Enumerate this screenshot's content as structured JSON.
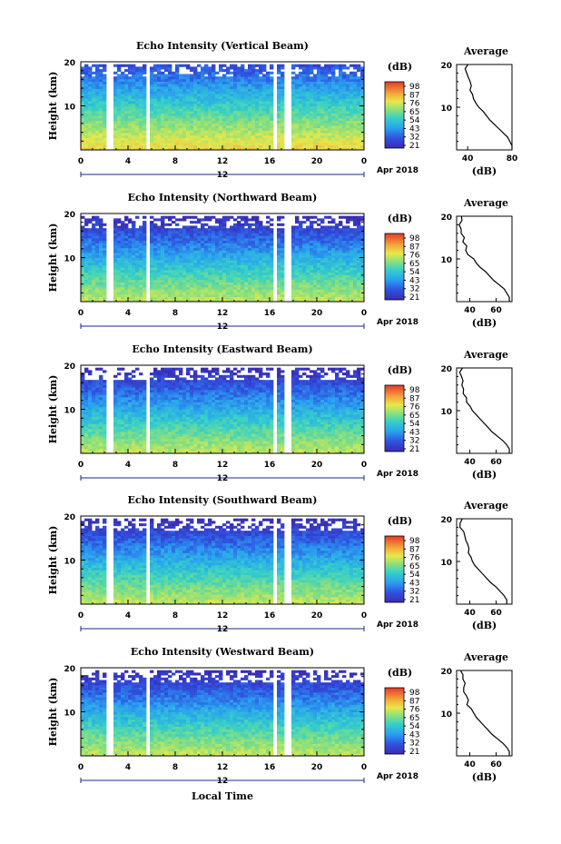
{
  "figure": {
    "x_axis_label": "Local Time",
    "colorbar_unit": "(dB)",
    "colorbar_ticks": [
      "98",
      "87",
      "76",
      "65",
      "54",
      "43",
      "32",
      "21"
    ],
    "colorbar_ticks_alt": [
      "98",
      "87",
      "76",
      "65",
      "54",
      "43",
      "32",
      "21"
    ],
    "date_label": "Apr 2018",
    "x_ticks": [
      "0",
      "4",
      "8",
      "12",
      "16",
      "20",
      "0"
    ],
    "x_mid_label": "12",
    "y_ticks": [
      "20",
      "10"
    ],
    "avg_title": "Average",
    "avg_xlabel": "(dB)"
  },
  "panels": [
    {
      "title": "Echo Intensity (Vertical Beam)",
      "ylabel": "Height (km)",
      "avg_x_ticks": [
        "40",
        "80"
      ]
    },
    {
      "title": "Echo Intensity (Northward Beam)",
      "ylabel": "Height (km)",
      "avg_x_ticks": [
        "40",
        "60"
      ]
    },
    {
      "title": "Echo Intensity (Eastward Beam)",
      "ylabel": "Height (km)",
      "avg_x_ticks": [
        "40",
        "60"
      ]
    },
    {
      "title": "Echo Intensity (Southward Beam)",
      "ylabel": "Height (km)",
      "avg_x_ticks": [
        "40",
        "60"
      ]
    },
    {
      "title": "Echo Intensity (Westward Beam)",
      "ylabel": "Height (km)",
      "avg_x_ticks": [
        "40",
        "60"
      ]
    }
  ],
  "chart_data": [
    {
      "type": "heatmap",
      "title": "Echo Intensity (Vertical Beam)",
      "xlabel": "Local Time",
      "ylabel": "Height (km)",
      "xlim": [
        0,
        24
      ],
      "ylim": [
        0,
        20
      ],
      "colorbar": {
        "label": "(dB)",
        "ticks": [
          98,
          87,
          76,
          65,
          54,
          43,
          32,
          21
        ]
      },
      "data_gaps_hours": [
        [
          2.3,
          2.7
        ],
        [
          5.6,
          5.9
        ],
        [
          16.2,
          16.5
        ],
        [
          17.3,
          17.7
        ]
      ],
      "profile_height_km": [
        0,
        1,
        2,
        3,
        4,
        5,
        6,
        7,
        8,
        9,
        10,
        11,
        12,
        13,
        14,
        15,
        16,
        17,
        18,
        19,
        20
      ],
      "profile_echo_db": [
        80,
        80,
        78,
        76,
        72,
        68,
        64,
        60,
        57,
        54,
        50,
        47,
        45,
        44,
        43,
        42,
        41,
        40,
        40,
        39,
        39
      ]
    },
    {
      "type": "heatmap",
      "title": "Echo Intensity (Northward Beam)",
      "xlabel": "Local Time",
      "ylabel": "Height (km)",
      "xlim": [
        0,
        24
      ],
      "ylim": [
        0,
        20
      ],
      "colorbar": {
        "label": "(dB)",
        "ticks": [
          98,
          87,
          76,
          65,
          54,
          43,
          32,
          21
        ]
      },
      "data_gaps_hours": [
        [
          2.3,
          2.7
        ],
        [
          5.6,
          5.9
        ],
        [
          16.2,
          16.5
        ],
        [
          17.3,
          17.7
        ]
      ],
      "profile_height_km": [
        0,
        1,
        2,
        3,
        4,
        5,
        6,
        7,
        8,
        9,
        10,
        11,
        12,
        13,
        14,
        15,
        16,
        17,
        18,
        19,
        20
      ],
      "profile_echo_db": [
        70,
        70,
        68,
        66,
        62,
        58,
        55,
        52,
        48,
        45,
        43,
        40,
        38,
        37,
        36,
        35,
        34,
        34,
        33,
        33,
        33
      ]
    },
    {
      "type": "heatmap",
      "title": "Echo Intensity (Eastward Beam)",
      "xlabel": "Local Time",
      "ylabel": "Height (km)",
      "xlim": [
        0,
        24
      ],
      "ylim": [
        0,
        20
      ],
      "colorbar": {
        "label": "(dB)",
        "ticks": [
          98,
          87,
          76,
          65,
          54,
          43,
          32,
          21
        ]
      },
      "data_gaps_hours": [
        [
          2.3,
          2.7
        ],
        [
          5.6,
          5.9
        ],
        [
          16.2,
          16.5
        ],
        [
          17.3,
          17.7
        ]
      ],
      "profile_height_km": [
        0,
        1,
        2,
        3,
        4,
        5,
        6,
        7,
        8,
        9,
        10,
        11,
        12,
        13,
        14,
        15,
        16,
        17,
        18,
        19,
        20
      ],
      "profile_echo_db": [
        70,
        70,
        68,
        65,
        61,
        57,
        54,
        51,
        48,
        45,
        42,
        40,
        38,
        37,
        36,
        35,
        34,
        34,
        33,
        33,
        33
      ]
    },
    {
      "type": "heatmap",
      "title": "Echo Intensity (Southward Beam)",
      "xlabel": "Local Time",
      "ylabel": "Height (km)",
      "xlim": [
        0,
        24
      ],
      "ylim": [
        0,
        20
      ],
      "colorbar": {
        "label": "(dB)",
        "ticks": [
          98,
          87,
          76,
          65,
          54,
          43,
          32,
          21
        ]
      },
      "data_gaps_hours": [
        [
          2.3,
          2.7
        ],
        [
          5.6,
          5.9
        ],
        [
          16.2,
          16.5
        ],
        [
          17.3,
          17.7
        ]
      ],
      "profile_height_km": [
        0,
        1,
        2,
        3,
        4,
        5,
        6,
        7,
        8,
        9,
        10,
        11,
        12,
        13,
        14,
        15,
        16,
        17,
        18,
        19,
        20
      ],
      "profile_echo_db": [
        68,
        68,
        66,
        63,
        60,
        56,
        53,
        50,
        47,
        44,
        42,
        40,
        38,
        38,
        37,
        36,
        35,
        34,
        34,
        33,
        33
      ]
    },
    {
      "type": "heatmap",
      "title": "Echo Intensity (Westward Beam)",
      "xlabel": "Local Time",
      "ylabel": "Height (km)",
      "xlim": [
        0,
        24
      ],
      "ylim": [
        0,
        20
      ],
      "colorbar": {
        "label": "(dB)",
        "ticks": [
          98,
          87,
          76,
          65,
          54,
          43,
          32,
          21
        ]
      },
      "data_gaps_hours": [
        [
          2.3,
          2.7
        ],
        [
          5.6,
          5.9
        ],
        [
          16.2,
          16.5
        ],
        [
          17.3,
          17.7
        ]
      ],
      "profile_height_km": [
        0,
        1,
        2,
        3,
        4,
        5,
        6,
        7,
        8,
        9,
        10,
        11,
        12,
        13,
        14,
        15,
        16,
        17,
        18,
        19,
        20
      ],
      "profile_echo_db": [
        70,
        70,
        68,
        65,
        61,
        57,
        54,
        51,
        48,
        45,
        43,
        41,
        39,
        38,
        37,
        36,
        35,
        35,
        34,
        34,
        34
      ]
    }
  ]
}
